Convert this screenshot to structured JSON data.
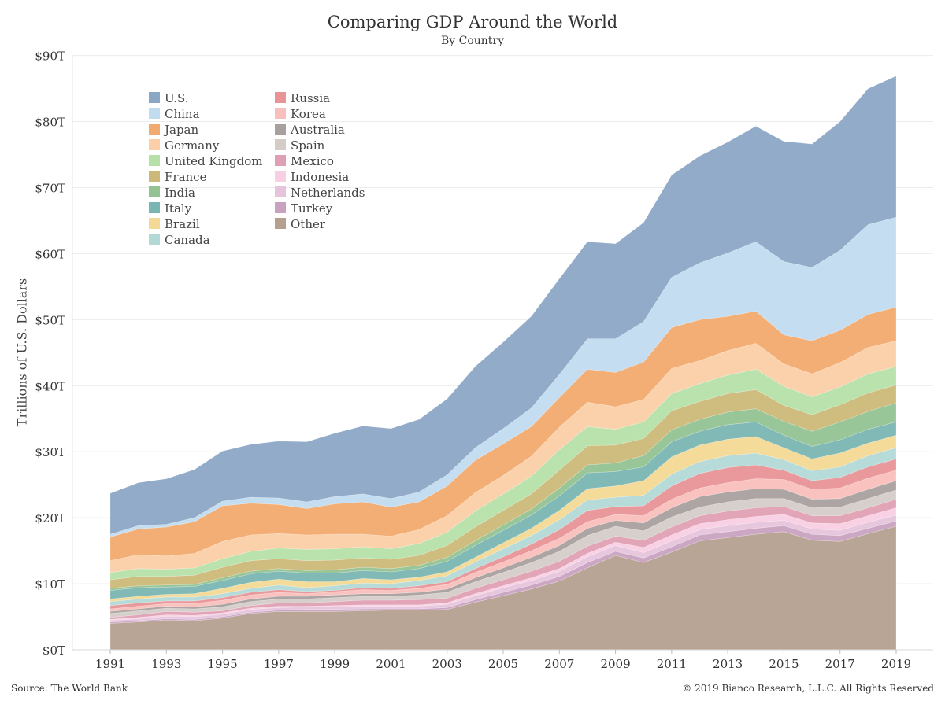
{
  "chart_data": {
    "type": "area",
    "stacked": true,
    "title": "Comparing GDP Around the World",
    "subtitle": "By Country",
    "ylabel": "Trillions of U.S. Dollars",
    "ylim": [
      0,
      90
    ],
    "yticks": [
      0,
      10,
      20,
      30,
      40,
      50,
      60,
      70,
      80,
      90
    ],
    "ytick_labels": [
      "$0T",
      "$10T",
      "$20T",
      "$30T",
      "$40T",
      "$50T",
      "$60T",
      "$70T",
      "$80T",
      "$90T"
    ],
    "xticks": [
      "1991",
      "1993",
      "1995",
      "1997",
      "1999",
      "2001",
      "2003",
      "2005",
      "2007",
      "2009",
      "2011",
      "2013",
      "2015",
      "2017",
      "2019"
    ],
    "x": [
      1991,
      1992,
      1993,
      1994,
      1995,
      1996,
      1997,
      1998,
      1999,
      2000,
      2001,
      2002,
      2003,
      2004,
      2005,
      2006,
      2007,
      2008,
      2009,
      2010,
      2011,
      2012,
      2013,
      2014,
      2015,
      2016,
      2017,
      2018,
      2019
    ],
    "grid": true,
    "legend_position": "top-left",
    "series": [
      {
        "name": "Other",
        "color": "#b5a090",
        "values": [
          4.0,
          4.2,
          4.5,
          4.4,
          4.8,
          5.5,
          5.8,
          5.8,
          5.8,
          5.9,
          6.0,
          6.0,
          6.1,
          7.2,
          8.2,
          9.2,
          10.4,
          12.4,
          14.3,
          13.2,
          14.8,
          16.5,
          17.0,
          17.5,
          17.9,
          16.6,
          16.4,
          17.6,
          18.7
        ]
      },
      {
        "name": "Turkey",
        "color": "#c9a2c0",
        "values": [
          0.2,
          0.2,
          0.2,
          0.2,
          0.2,
          0.2,
          0.2,
          0.3,
          0.3,
          0.3,
          0.2,
          0.2,
          0.3,
          0.4,
          0.5,
          0.6,
          0.7,
          0.8,
          0.6,
          0.7,
          0.8,
          0.9,
          0.9,
          0.9,
          0.9,
          0.9,
          0.9,
          0.8,
          0.8
        ]
      },
      {
        "name": "Netherlands",
        "color": "#e6c4dc",
        "values": [
          0.3,
          0.3,
          0.4,
          0.4,
          0.4,
          0.4,
          0.4,
          0.4,
          0.4,
          0.4,
          0.4,
          0.4,
          0.5,
          0.6,
          0.7,
          0.7,
          0.8,
          0.9,
          0.9,
          0.8,
          0.9,
          0.8,
          0.9,
          0.9,
          0.8,
          0.8,
          0.8,
          0.9,
          0.9
        ]
      },
      {
        "name": "Indonesia",
        "color": "#f9cfe3",
        "values": [
          0.1,
          0.2,
          0.2,
          0.2,
          0.2,
          0.2,
          0.2,
          0.1,
          0.2,
          0.2,
          0.2,
          0.2,
          0.2,
          0.3,
          0.3,
          0.4,
          0.4,
          0.5,
          0.5,
          0.8,
          0.9,
          0.9,
          0.9,
          0.9,
          0.9,
          0.9,
          1.0,
          1.0,
          1.1
        ]
      },
      {
        "name": "Mexico",
        "color": "#e0a0b4",
        "values": [
          0.3,
          0.4,
          0.5,
          0.5,
          0.3,
          0.4,
          0.5,
          0.5,
          0.6,
          0.7,
          0.7,
          0.8,
          0.7,
          0.8,
          0.9,
          1.0,
          1.1,
          1.1,
          0.9,
          1.1,
          1.2,
          1.2,
          1.3,
          1.3,
          1.2,
          1.1,
          1.2,
          1.2,
          1.3
        ]
      },
      {
        "name": "Spain",
        "color": "#d5ccc8",
        "values": [
          0.6,
          0.6,
          0.5,
          0.5,
          0.6,
          0.6,
          0.6,
          0.6,
          0.6,
          0.6,
          0.6,
          0.7,
          0.9,
          1.0,
          1.1,
          1.3,
          1.5,
          1.6,
          1.5,
          1.4,
          1.5,
          1.3,
          1.4,
          1.4,
          1.2,
          1.2,
          1.3,
          1.4,
          1.4
        ]
      },
      {
        "name": "Australia",
        "color": "#a8a09e",
        "values": [
          0.3,
          0.3,
          0.3,
          0.3,
          0.4,
          0.4,
          0.4,
          0.4,
          0.4,
          0.4,
          0.4,
          0.4,
          0.5,
          0.6,
          0.7,
          0.8,
          0.9,
          1.1,
          0.9,
          1.2,
          1.4,
          1.6,
          1.5,
          1.5,
          1.4,
          1.3,
          1.3,
          1.4,
          1.4
        ]
      },
      {
        "name": "Korea",
        "color": "#f9bfbc",
        "values": [
          0.4,
          0.4,
          0.4,
          0.5,
          0.6,
          0.6,
          0.6,
          0.4,
          0.5,
          0.6,
          0.5,
          0.6,
          0.7,
          0.8,
          0.9,
          1.0,
          1.1,
          1.0,
          0.9,
          1.1,
          1.3,
          1.3,
          1.4,
          1.5,
          1.5,
          1.5,
          1.6,
          1.7,
          1.6
        ]
      },
      {
        "name": "Russia",
        "color": "#e89496",
        "values": [
          0.5,
          0.5,
          0.4,
          0.4,
          0.4,
          0.4,
          0.4,
          0.3,
          0.2,
          0.3,
          0.3,
          0.4,
          0.4,
          0.6,
          0.8,
          1.0,
          1.3,
          1.7,
          1.2,
          1.5,
          2.0,
          2.2,
          2.3,
          2.1,
          1.4,
          1.3,
          1.6,
          1.7,
          1.7
        ]
      },
      {
        "name": "Canada",
        "color": "#b3d9d6",
        "values": [
          0.6,
          0.6,
          0.6,
          0.6,
          0.6,
          0.6,
          0.7,
          0.6,
          0.7,
          0.7,
          0.7,
          0.8,
          0.9,
          1.0,
          1.2,
          1.3,
          1.5,
          1.6,
          1.4,
          1.6,
          1.8,
          1.8,
          1.8,
          1.8,
          1.6,
          1.5,
          1.6,
          1.7,
          1.7
        ]
      },
      {
        "name": "Brazil",
        "color": "#f3d995",
        "values": [
          0.4,
          0.4,
          0.4,
          0.5,
          0.8,
          0.9,
          0.9,
          0.9,
          0.6,
          0.7,
          0.6,
          0.5,
          0.6,
          0.7,
          0.9,
          1.1,
          1.4,
          1.7,
          1.7,
          2.2,
          2.6,
          2.5,
          2.5,
          2.5,
          1.8,
          1.8,
          2.1,
          1.9,
          1.9
        ]
      },
      {
        "name": "Italy",
        "color": "#79b5b1",
        "values": [
          1.3,
          1.3,
          1.1,
          1.1,
          1.2,
          1.3,
          1.2,
          1.3,
          1.3,
          1.2,
          1.2,
          1.3,
          1.6,
          1.8,
          1.9,
          2.0,
          2.2,
          2.4,
          2.2,
          2.1,
          2.3,
          2.1,
          2.2,
          2.2,
          1.9,
          1.9,
          2.0,
          2.1,
          2.0
        ]
      },
      {
        "name": "India",
        "color": "#93c392",
        "values": [
          0.3,
          0.3,
          0.3,
          0.3,
          0.4,
          0.4,
          0.4,
          0.4,
          0.5,
          0.5,
          0.5,
          0.5,
          0.6,
          0.7,
          0.8,
          0.9,
          1.2,
          1.2,
          1.3,
          1.7,
          1.8,
          1.8,
          1.9,
          2.0,
          2.1,
          2.3,
          2.7,
          2.7,
          2.9
        ]
      },
      {
        "name": "France",
        "color": "#ccb878",
        "values": [
          1.3,
          1.4,
          1.3,
          1.4,
          1.6,
          1.6,
          1.5,
          1.5,
          1.5,
          1.4,
          1.4,
          1.5,
          1.8,
          2.1,
          2.2,
          2.3,
          2.7,
          2.9,
          2.7,
          2.6,
          2.9,
          2.7,
          2.8,
          2.9,
          2.4,
          2.5,
          2.6,
          2.8,
          2.7
        ]
      },
      {
        "name": "United Kingdom",
        "color": "#b5e0a8",
        "values": [
          1.1,
          1.2,
          1.1,
          1.1,
          1.3,
          1.4,
          1.6,
          1.7,
          1.7,
          1.7,
          1.6,
          1.8,
          2.0,
          2.4,
          2.5,
          2.7,
          3.1,
          2.9,
          2.4,
          2.5,
          2.6,
          2.7,
          2.8,
          3.1,
          2.9,
          2.7,
          2.7,
          2.9,
          2.8
        ]
      },
      {
        "name": "Germany",
        "color": "#fbcfa8",
        "values": [
          1.8,
          2.1,
          2.0,
          2.2,
          2.6,
          2.5,
          2.2,
          2.2,
          2.2,
          1.9,
          1.9,
          2.1,
          2.5,
          2.8,
          2.8,
          3.0,
          3.4,
          3.7,
          3.4,
          3.4,
          3.8,
          3.5,
          3.7,
          3.9,
          3.4,
          3.5,
          3.7,
          4.0,
          3.9
        ]
      },
      {
        "name": "Japan",
        "color": "#f2aa6e",
        "values": [
          3.6,
          3.9,
          4.4,
          4.8,
          5.4,
          4.8,
          4.4,
          4.0,
          4.6,
          4.9,
          4.4,
          4.2,
          4.5,
          4.9,
          4.8,
          4.5,
          4.5,
          5.0,
          5.2,
          5.7,
          6.2,
          6.2,
          5.2,
          4.9,
          4.4,
          5.0,
          4.9,
          5.0,
          5.1
        ]
      },
      {
        "name": "China",
        "color": "#c1dbef",
        "values": [
          0.4,
          0.5,
          0.4,
          0.6,
          0.7,
          0.9,
          1.0,
          1.0,
          1.1,
          1.2,
          1.3,
          1.5,
          1.7,
          1.9,
          2.3,
          2.8,
          3.5,
          4.6,
          5.1,
          6.1,
          7.6,
          8.6,
          9.6,
          10.5,
          11.1,
          11.1,
          12.1,
          13.6,
          13.6
        ]
      },
      {
        "name": "U.S.",
        "color": "#8ba7c6",
        "values": [
          6.2,
          6.5,
          6.9,
          7.3,
          7.6,
          8.0,
          8.6,
          9.1,
          9.6,
          10.3,
          10.6,
          11.0,
          11.5,
          12.3,
          13.1,
          13.9,
          14.5,
          14.7,
          14.4,
          15.0,
          15.5,
          16.2,
          16.8,
          17.5,
          18.2,
          18.7,
          19.5,
          20.6,
          21.4
        ]
      }
    ]
  }
}
